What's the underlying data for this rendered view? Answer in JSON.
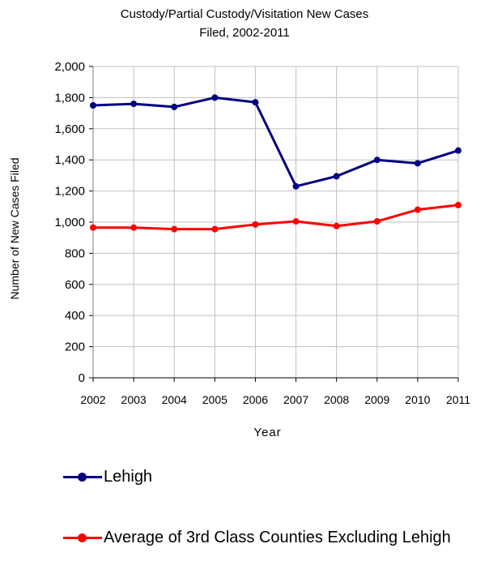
{
  "chart_data": {
    "type": "line",
    "title_line1": "Custody/Partial Custody/Visitation New  Cases",
    "title_line2": "Filed, 2002-2011",
    "xlabel": "Year",
    "ylabel": "Number of New Cases Filed",
    "categories": [
      "2002",
      "2003",
      "2004",
      "2005",
      "2006",
      "2007",
      "2008",
      "2009",
      "2010",
      "2011"
    ],
    "ylim": [
      0,
      2000
    ],
    "yticks": [
      0,
      200,
      400,
      600,
      800,
      1000,
      1200,
      1400,
      1600,
      1800,
      2000
    ],
    "ytick_labels": [
      "0",
      "200",
      "400",
      "600",
      "800",
      "1,000",
      "1,200",
      "1,400",
      "1,600",
      "1,800",
      "2,000"
    ],
    "grid": true,
    "legend_position": "bottom",
    "series": [
      {
        "name": "Lehigh",
        "color": "#000080",
        "values": [
          1750,
          1760,
          1740,
          1800,
          1770,
          1230,
          1295,
          1400,
          1378,
          1460
        ]
      },
      {
        "name": "Average of 3rd Class Counties Excluding Lehigh",
        "color": "#ff0000",
        "values": [
          965,
          965,
          955,
          955,
          985,
          1005,
          975,
          1005,
          1080,
          1110
        ]
      }
    ]
  }
}
